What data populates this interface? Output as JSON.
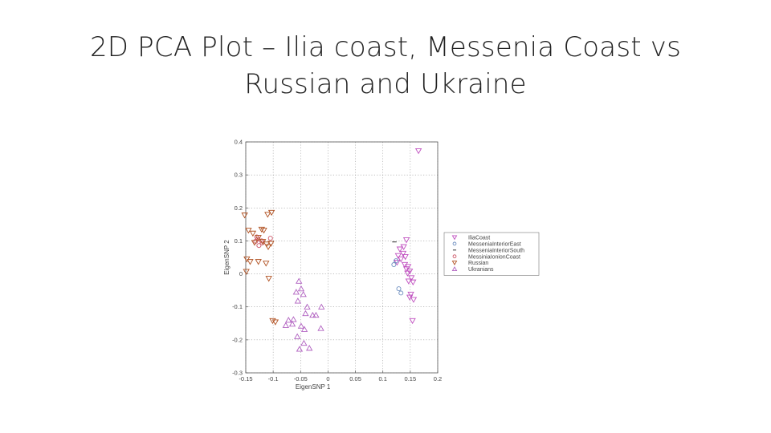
{
  "slide": {
    "title_line1": "2D PCA Plot – Ilia coast, Messenia Coast vs",
    "title_line2": "Russian and Ukraine"
  },
  "chart_data": {
    "type": "scatter",
    "title": "",
    "xlabel": "EigenSNP 1",
    "ylabel": "EigenSNP 2",
    "xlim": [
      -0.15,
      0.2
    ],
    "ylim": [
      -0.3,
      0.4
    ],
    "xticks": [
      {
        "value": -0.15,
        "label": "-0.15"
      },
      {
        "value": -0.1,
        "label": "-0.1"
      },
      {
        "value": -0.05,
        "label": "-0.05"
      },
      {
        "value": 0,
        "label": "0"
      },
      {
        "value": 0.05,
        "label": "0.05"
      },
      {
        "value": 0.1,
        "label": "0.1"
      },
      {
        "value": 0.15,
        "label": "0.15"
      },
      {
        "value": 0.2,
        "label": "0.2"
      }
    ],
    "yticks": [
      {
        "value": 0.4,
        "label": "0.4"
      },
      {
        "value": 0.3,
        "label": "0.3"
      },
      {
        "value": 0.2,
        "label": "0.2"
      },
      {
        "value": 0.1,
        "label": "0.1"
      },
      {
        "value": 0,
        "label": "0"
      },
      {
        "value": -0.1,
        "label": "-0.1"
      },
      {
        "value": -0.2,
        "label": "-0.2"
      },
      {
        "value": -0.3,
        "label": "-0.3"
      }
    ],
    "grid": "dotted",
    "legend_position": "outside-right",
    "series": [
      {
        "name": "IliaCoast",
        "marker": "triangle-down",
        "color": "#c050c0",
        "points": [
          [
            0.165,
            0.373
          ],
          [
            0.143,
            0.103
          ],
          [
            0.138,
            0.082
          ],
          [
            0.131,
            0.075
          ],
          [
            0.137,
            0.062
          ],
          [
            0.128,
            0.055
          ],
          [
            0.141,
            0.052
          ],
          [
            0.133,
            0.045
          ],
          [
            0.126,
            0.035
          ],
          [
            0.14,
            0.028
          ],
          [
            0.146,
            0.022
          ],
          [
            0.143,
            0.015
          ],
          [
            0.149,
            0.008
          ],
          [
            0.145,
            0.002
          ],
          [
            0.152,
            -0.012
          ],
          [
            0.147,
            -0.022
          ],
          [
            0.155,
            -0.025
          ],
          [
            0.151,
            -0.062
          ],
          [
            0.149,
            -0.071
          ],
          [
            0.156,
            -0.078
          ],
          [
            0.154,
            -0.142
          ]
        ]
      },
      {
        "name": "MesseniaInteriorEast",
        "marker": "circle",
        "color": "#7090c0",
        "points": [
          [
            0.12,
            0.028
          ],
          [
            0.124,
            0.04
          ],
          [
            0.129,
            -0.045
          ],
          [
            0.133,
            -0.058
          ]
        ]
      },
      {
        "name": "MesseniaInteriorSouth",
        "marker": "dash",
        "color": "#555555",
        "points": [
          [
            0.121,
            0.097
          ]
        ]
      },
      {
        "name": "MessiniaIonionCoast",
        "marker": "circle",
        "color": "#cc5566",
        "points": [
          [
            -0.13,
            0.112
          ],
          [
            -0.128,
            0.106
          ],
          [
            -0.132,
            0.099
          ],
          [
            -0.12,
            0.094
          ],
          [
            -0.126,
            0.086
          ],
          [
            -0.121,
            0.1
          ],
          [
            -0.105,
            0.108
          ]
        ]
      },
      {
        "name": "Russian",
        "marker": "triangle-down",
        "color": "#b05020",
        "points": [
          [
            -0.152,
            0.178
          ],
          [
            -0.11,
            0.18
          ],
          [
            -0.103,
            0.186
          ],
          [
            -0.145,
            0.132
          ],
          [
            -0.137,
            0.123
          ],
          [
            -0.121,
            0.135
          ],
          [
            -0.117,
            0.132
          ],
          [
            -0.127,
            0.11
          ],
          [
            -0.134,
            0.095
          ],
          [
            -0.119,
            0.098
          ],
          [
            -0.104,
            0.092
          ],
          [
            -0.112,
            0.09
          ],
          [
            -0.109,
            0.082
          ],
          [
            -0.148,
            0.045
          ],
          [
            -0.142,
            0.037
          ],
          [
            -0.127,
            0.037
          ],
          [
            -0.113,
            0.032
          ],
          [
            -0.149,
            0.007
          ],
          [
            -0.108,
            -0.014
          ],
          [
            -0.101,
            -0.142
          ],
          [
            -0.096,
            -0.146
          ]
        ]
      },
      {
        "name": "Ukranians",
        "marker": "triangle-up",
        "color": "#b060c0",
        "points": [
          [
            -0.053,
            -0.022
          ],
          [
            -0.058,
            -0.055
          ],
          [
            -0.049,
            -0.045
          ],
          [
            -0.045,
            -0.062
          ],
          [
            -0.055,
            -0.082
          ],
          [
            -0.038,
            -0.1
          ],
          [
            -0.041,
            -0.12
          ],
          [
            -0.028,
            -0.125
          ],
          [
            -0.022,
            -0.125
          ],
          [
            -0.012,
            -0.1
          ],
          [
            -0.063,
            -0.138
          ],
          [
            -0.072,
            -0.14
          ],
          [
            -0.077,
            -0.156
          ],
          [
            -0.065,
            -0.152
          ],
          [
            -0.049,
            -0.158
          ],
          [
            -0.043,
            -0.168
          ],
          [
            -0.013,
            -0.165
          ],
          [
            -0.056,
            -0.19
          ],
          [
            -0.044,
            -0.21
          ],
          [
            -0.052,
            -0.228
          ],
          [
            -0.034,
            -0.225
          ]
        ]
      }
    ]
  }
}
